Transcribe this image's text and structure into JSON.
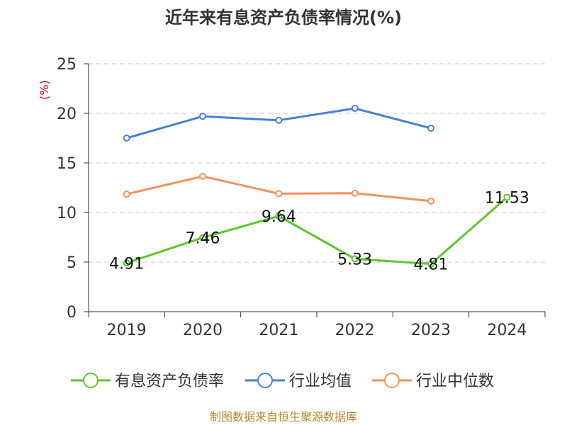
{
  "title": "近年来有息资产负债率情况(%)",
  "source": "制图数据来自恒生聚源数据库",
  "chart_data": {
    "type": "line",
    "title": "近年来有息资产负债率情况(%)",
    "ylabel": "(%)",
    "xlabel": "",
    "categories": [
      "2019",
      "2020",
      "2021",
      "2022",
      "2023",
      "2024"
    ],
    "ylim": [
      0,
      25
    ],
    "yticks": [
      0,
      5,
      10,
      15,
      20,
      25
    ],
    "grid": true,
    "legend_position": "bottom",
    "series": [
      {
        "name": "有息资产负债率",
        "color": "#5cc72b",
        "values": [
          4.91,
          7.46,
          9.64,
          5.33,
          4.81,
          11.53
        ],
        "data_labels": [
          "4.91",
          "7.46",
          "9.64",
          "5.33",
          "4.81",
          "11.53"
        ]
      },
      {
        "name": "行业均值",
        "color": "#4a7fd6",
        "values": [
          17.5,
          19.7,
          19.3,
          20.5,
          18.5,
          null
        ],
        "data_labels": null
      },
      {
        "name": "行业中位数",
        "color": "#f5915c",
        "values": [
          11.85,
          13.65,
          11.9,
          11.95,
          11.15,
          null
        ],
        "data_labels": null
      }
    ]
  }
}
